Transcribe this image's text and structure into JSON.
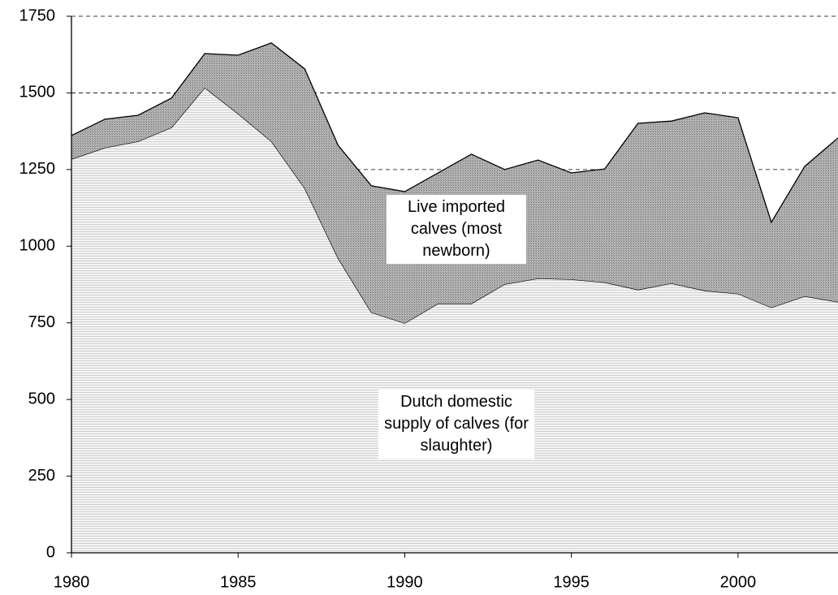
{
  "chart_data": {
    "type": "stacked-area",
    "x": [
      1980,
      1981,
      1982,
      1983,
      1984,
      1985,
      1986,
      1987,
      1988,
      1989,
      1990,
      1991,
      1992,
      1993,
      1994,
      1995,
      1996,
      1997,
      1998,
      1999,
      2000,
      2001,
      2002,
      2003
    ],
    "series": [
      {
        "name": "Dutch domestic supply of calves (for slaughter)",
        "color": "#e6e6e6",
        "values": [
          1284,
          1321,
          1342,
          1387,
          1517,
          1432,
          1342,
          1189,
          961,
          784,
          749,
          813,
          813,
          876,
          895,
          892,
          882,
          858,
          879,
          855,
          845,
          800,
          837,
          818
        ]
      },
      {
        "name": "Live imported calves (most newborn)",
        "color": "#a3a3a3",
        "values": [
          77,
          93,
          85,
          96,
          111,
          191,
          321,
          389,
          368,
          413,
          429,
          426,
          487,
          374,
          386,
          347,
          370,
          543,
          529,
          580,
          574,
          278,
          423,
          535
        ]
      }
    ],
    "xlim": [
      1980,
      2003
    ],
    "xticks": [
      1980,
      1985,
      1990,
      1995,
      2000
    ],
    "ylim": [
      0,
      1750
    ],
    "yticks": [
      0,
      250,
      500,
      750,
      1000,
      1250,
      1500,
      1750
    ],
    "grid": true
  }
}
